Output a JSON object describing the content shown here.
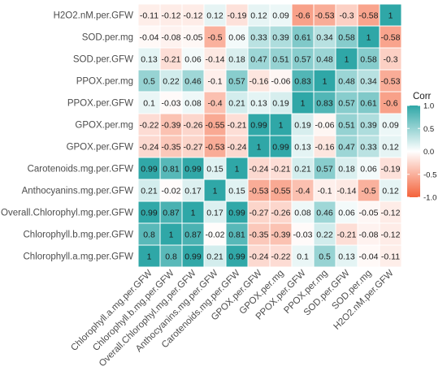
{
  "chart_data": {
    "type": "heatmap",
    "title": "",
    "xlabel": "",
    "ylabel": "",
    "variables": [
      "Chlorophyll.a.mg.per.GFW",
      "Chlorophyll.b.mg.per.GFW",
      "Overall.Chlorophyl.mg.per.GFW",
      "Anthocyanins.mg.per.GFW",
      "Carotenoids.mg.per.GFW",
      "GPOX.per.GFW",
      "GPOX.per.mg",
      "PPOX.per.GFW",
      "PPOX.per.mg",
      "SOD.per.GFW",
      "SOD.per.mg",
      "H2O2.nM.per.GFW"
    ],
    "matrix": [
      [
        1,
        0.8,
        0.99,
        0.21,
        0.99,
        -0.24,
        -0.22,
        0.1,
        0.5,
        0.13,
        -0.04,
        -0.11
      ],
      [
        0.8,
        1,
        0.87,
        -0.02,
        0.81,
        -0.35,
        -0.39,
        -0.03,
        0.22,
        -0.21,
        -0.08,
        -0.12
      ],
      [
        0.99,
        0.87,
        1,
        0.17,
        0.99,
        -0.27,
        -0.26,
        0.08,
        0.46,
        0.06,
        -0.05,
        -0.12
      ],
      [
        0.21,
        -0.02,
        0.17,
        1,
        0.15,
        -0.53,
        -0.55,
        -0.4,
        -0.1,
        -0.14,
        -0.5,
        0.12
      ],
      [
        0.99,
        0.81,
        0.99,
        0.15,
        1,
        -0.24,
        -0.21,
        0.21,
        0.57,
        0.18,
        0.06,
        -0.19
      ],
      [
        -0.24,
        -0.35,
        -0.27,
        -0.53,
        -0.24,
        1,
        0.99,
        0.13,
        -0.16,
        0.47,
        0.33,
        0.12
      ],
      [
        -0.22,
        -0.39,
        -0.26,
        -0.55,
        -0.21,
        0.99,
        1,
        0.19,
        -0.06,
        0.51,
        0.39,
        0.09
      ],
      [
        0.1,
        -0.03,
        0.08,
        -0.4,
        0.21,
        0.13,
        0.19,
        1,
        0.83,
        0.57,
        0.61,
        -0.6
      ],
      [
        0.5,
        0.22,
        0.46,
        -0.1,
        0.57,
        -0.16,
        -0.06,
        0.83,
        1,
        0.48,
        0.34,
        -0.53
      ],
      [
        0.13,
        -0.21,
        0.06,
        -0.14,
        0.18,
        0.47,
        0.51,
        0.57,
        0.48,
        1,
        0.58,
        -0.3
      ],
      [
        -0.04,
        -0.08,
        -0.05,
        -0.5,
        0.06,
        0.33,
        0.39,
        0.61,
        0.34,
        0.58,
        1,
        -0.58
      ],
      [
        -0.11,
        -0.12,
        -0.12,
        0.12,
        -0.19,
        0.12,
        0.09,
        -0.6,
        -0.53,
        -0.3,
        -0.58,
        1
      ]
    ],
    "legend": {
      "title": "Corr",
      "placement": "right",
      "ticks": [
        "1.0",
        "0.5",
        "0.0",
        "-0.5",
        "-1.0"
      ],
      "tick_values": [
        1,
        0.5,
        0,
        -0.5,
        -1
      ]
    },
    "colors": {
      "high": "#2fa7a7",
      "mid": "#ffffff",
      "low": "#f4623a",
      "grid": "#ffffff"
    },
    "value_range": [
      -1,
      1
    ]
  }
}
